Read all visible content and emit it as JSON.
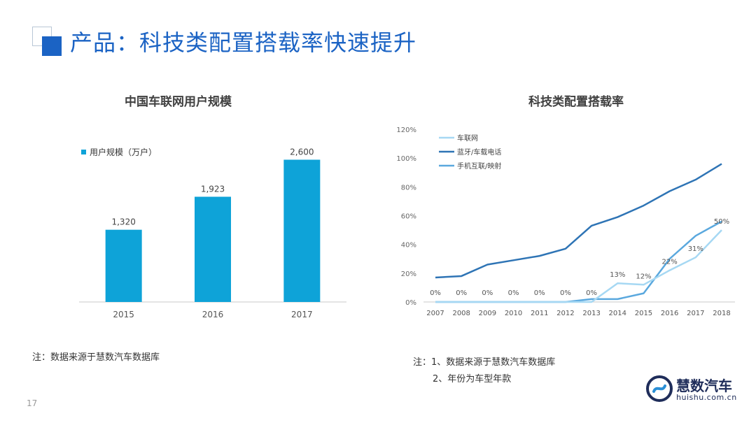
{
  "page": {
    "title": "产品：科技类配置搭载率快速提升",
    "page_number": "17",
    "note_left": "注：数据来源于慧数汽车数据库",
    "note_right_1": "注：1、数据来源于慧数汽车数据库",
    "note_right_2": "2、年份为车型年款",
    "logo_name": "慧数汽车",
    "logo_url": "huishu.com.cn",
    "colors": {
      "title": "#1b63c4",
      "bar": "#0ea3d8"
    }
  },
  "chart_data": [
    {
      "type": "bar",
      "title": "中国车联网用户规模",
      "categories": [
        "2015",
        "2016",
        "2017"
      ],
      "series": [
        {
          "name": "用户规模（万户）",
          "values": [
            1320,
            1923,
            2600
          ],
          "color": "#0ea3d8"
        }
      ],
      "data_labels": [
        "1,320",
        "1,923",
        "2,600"
      ],
      "ylim": [
        0,
        2900
      ],
      "legend": "top-left",
      "grid": false
    },
    {
      "type": "line",
      "title": "科技类配置搭载率",
      "x": [
        "2007",
        "2008",
        "2009",
        "2010",
        "2011",
        "2012",
        "2013",
        "2014",
        "2015",
        "2016",
        "2017",
        "2018"
      ],
      "y_ticks": [
        "0%",
        "20%",
        "40%",
        "60%",
        "80%",
        "100%",
        "120%"
      ],
      "ylim": [
        0,
        120
      ],
      "legend": "top-left",
      "grid": false,
      "series": [
        {
          "name": "车联网",
          "color": "#a6d8f3",
          "values": [
            0,
            0,
            0,
            0,
            0,
            0,
            0,
            13,
            12,
            22,
            31,
            50
          ],
          "labels": [
            "0%",
            "0%",
            "0%",
            "0%",
            "0%",
            "0%",
            "0%",
            "13%",
            "12%",
            "22%",
            "31%",
            "50%"
          ]
        },
        {
          "name": "蓝牙/车载电话",
          "color": "#2e74b5",
          "values": [
            17,
            18,
            26,
            29,
            32,
            37,
            53,
            59,
            67,
            77,
            85,
            96
          ]
        },
        {
          "name": "手机互联/映射",
          "color": "#5aa8de",
          "values": [
            0,
            0,
            0,
            0,
            0,
            0,
            2,
            2,
            6,
            30,
            46,
            56
          ]
        }
      ]
    }
  ]
}
